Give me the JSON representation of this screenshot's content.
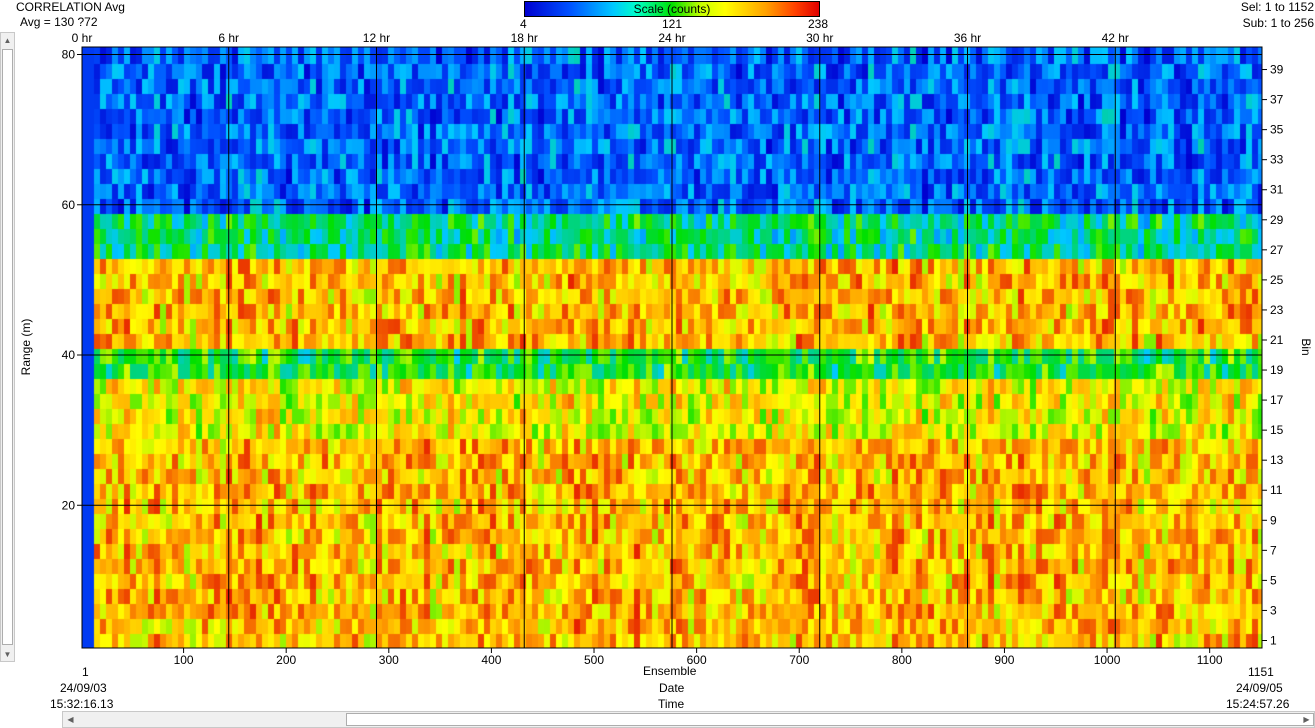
{
  "header": {
    "title": "CORRELATION Avg",
    "avg": "Avg = 130 ?72",
    "sel": "Sel: 1 to 1152",
    "sub": "Sub: 1 to 256"
  },
  "colorbar": {
    "title": "Scale (counts)",
    "min": "4",
    "mid": "121",
    "max": "238"
  },
  "footer": {
    "ensemble_label": "Ensemble",
    "date_label": "Date",
    "time_label": "Time",
    "start_ensemble": "1",
    "end_ensemble": "1151",
    "start_date": "24/09/03",
    "end_date": "24/09/05",
    "start_time": "15:32:16.13",
    "end_time": "15:24:57.26"
  },
  "chart_data": {
    "type": "heatmap",
    "title": "CORRELATION Avg",
    "value_label": "Scale (counts)",
    "value_range": [
      4,
      238
    ],
    "x_range": [
      1,
      1151
    ],
    "xlabel": "Ensemble",
    "x_ticks": [
      100,
      200,
      300,
      400,
      500,
      600,
      700,
      800,
      900,
      1000,
      1100
    ],
    "x_ticks_top": [
      "0 hr",
      "6 hr",
      "12 hr",
      "18 hr",
      "24 hr",
      "30 hr",
      "36 hr",
      "42 hr"
    ],
    "x_ticks_top_positions": [
      1,
      144,
      288,
      432,
      576,
      720,
      864,
      1008
    ],
    "ylabel": "Range (m)",
    "y_range": [
      1,
      81
    ],
    "y_ticks": [
      20,
      40,
      60,
      80
    ],
    "y2label": "Bin",
    "y2_range": [
      0,
      40
    ],
    "y2_ticks": [
      1,
      3,
      5,
      7,
      9,
      11,
      13,
      15,
      17,
      19,
      21,
      23,
      25,
      27,
      29,
      31,
      33,
      35,
      37,
      39
    ],
    "grid": true,
    "rows": [
      {
        "bins": "1-14",
        "level": 185
      },
      {
        "bins": "15-18",
        "level": 165
      },
      {
        "bins": "19-20",
        "level": 115
      },
      {
        "bins": "21-26",
        "level": 185
      },
      {
        "bins": "27-29",
        "level": 100
      },
      {
        "bins": "30-40",
        "level": 45
      }
    ],
    "colormap": [
      {
        "value": 4,
        "color": "#0000d0"
      },
      {
        "value": 40,
        "color": "#0050ff"
      },
      {
        "value": 74,
        "color": "#00c8ff"
      },
      {
        "value": 121,
        "color": "#00e000"
      },
      {
        "value": 163,
        "color": "#ffff00"
      },
      {
        "value": 196,
        "color": "#ffa000"
      },
      {
        "value": 238,
        "color": "#e00000"
      }
    ]
  }
}
